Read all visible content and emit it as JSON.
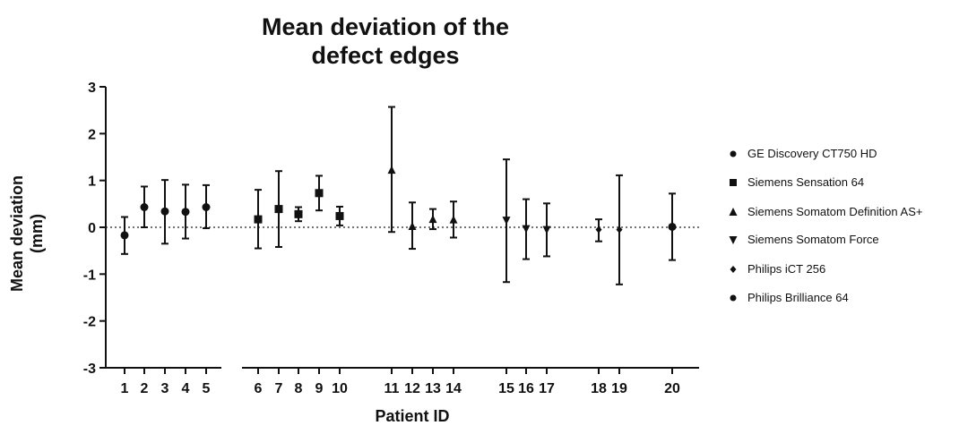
{
  "chart_data": {
    "type": "scatter",
    "title_line1": "Mean deviation of the",
    "title_line2": "defect edges",
    "xlabel": "Patient ID",
    "ylabel_line1": "Mean deviation",
    "ylabel_line2": "(mm)",
    "ylim": [
      -3,
      3
    ],
    "yticks": [
      -3,
      -2,
      -1,
      0,
      1,
      2,
      3
    ],
    "reference_line": 0,
    "legend_position": "right",
    "series": [
      {
        "name": "GE Discovery CT750 HD",
        "marker": "circle",
        "points": [
          {
            "label": "1",
            "y": -0.17,
            "low": -0.57,
            "high": 0.22
          },
          {
            "label": "2",
            "y": 0.43,
            "low": 0.0,
            "high": 0.87
          },
          {
            "label": "3",
            "y": 0.34,
            "low": -0.35,
            "high": 1.01
          },
          {
            "label": "4",
            "y": 0.33,
            "low": -0.24,
            "high": 0.91
          },
          {
            "label": "5",
            "y": 0.43,
            "low": -0.02,
            "high": 0.9
          }
        ]
      },
      {
        "name": "Siemens Sensation 64",
        "marker": "square",
        "points": [
          {
            "label": "6",
            "y": 0.17,
            "low": -0.45,
            "high": 0.8
          },
          {
            "label": "7",
            "y": 0.39,
            "low": -0.42,
            "high": 1.2
          },
          {
            "label": "8",
            "y": 0.28,
            "low": 0.13,
            "high": 0.43
          },
          {
            "label": "9",
            "y": 0.73,
            "low": 0.36,
            "high": 1.1
          },
          {
            "label": "10",
            "y": 0.24,
            "low": 0.04,
            "high": 0.44
          }
        ]
      },
      {
        "name": "Siemens Somatom Definition  AS+",
        "marker": "triangle-up",
        "points": [
          {
            "label": "11",
            "y": 1.22,
            "low": -0.1,
            "high": 2.57
          },
          {
            "label": "12",
            "y": 0.02,
            "low": -0.46,
            "high": 0.53
          },
          {
            "label": "13",
            "y": 0.17,
            "low": -0.04,
            "high": 0.39
          },
          {
            "label": "14",
            "y": 0.16,
            "low": -0.22,
            "high": 0.55
          }
        ]
      },
      {
        "name": "Siemens Somatom Force",
        "marker": "triangle-down",
        "points": [
          {
            "label": "15",
            "y": 0.15,
            "low": -1.17,
            "high": 1.45
          },
          {
            "label": "16",
            "y": -0.03,
            "low": -0.68,
            "high": 0.6
          },
          {
            "label": "17",
            "y": -0.05,
            "low": -0.62,
            "high": 0.51
          }
        ]
      },
      {
        "name": "Philips iCT 256",
        "marker": "diamond",
        "points": [
          {
            "label": "18",
            "y": -0.05,
            "low": -0.3,
            "high": 0.17
          },
          {
            "label": "19",
            "y": -0.05,
            "low": -1.22,
            "high": 1.11
          }
        ]
      },
      {
        "name": "Philips Brilliance 64",
        "marker": "circle",
        "points": [
          {
            "label": "20",
            "y": 0.01,
            "low": -0.7,
            "high": 0.72
          }
        ]
      }
    ]
  }
}
